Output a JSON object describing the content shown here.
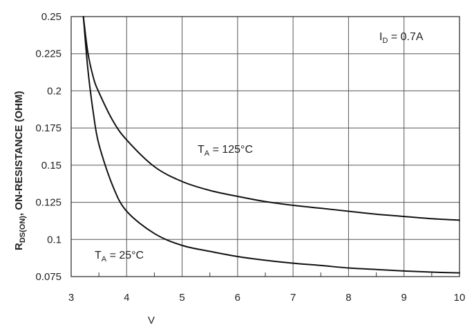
{
  "chart_data": {
    "type": "line",
    "ylabel": {
      "prefix": "R",
      "sub": "DS(ON)",
      "rest": ", ON-RESISTANCE (OHM)"
    },
    "xlabel_fragment": "V",
    "xlim": [
      3,
      10
    ],
    "ylim": [
      0.075,
      0.25
    ],
    "x_ticks": [
      "3",
      "4",
      "5",
      "6",
      "7",
      "8",
      "9",
      "10"
    ],
    "y_ticks": [
      "0.25",
      "0.225",
      "0.2",
      "0.175",
      "0.15",
      "0.125",
      "0.1",
      "0.075"
    ],
    "grid": true,
    "annotations": {
      "id": {
        "base": "I",
        "sub": "D",
        "rest": " = 0.7A"
      },
      "t125": {
        "base": "T",
        "sub": "A",
        "rest": " = 125°C"
      },
      "t25": {
        "base": "T",
        "sub": "A",
        "rest": " = 25°C"
      }
    },
    "series": [
      {
        "label": "T_A = 125°C",
        "x": [
          3.22,
          3.3,
          3.4,
          3.5,
          3.75,
          4,
          4.5,
          5,
          5.5,
          6,
          6.5,
          7,
          7.5,
          8,
          8.5,
          9,
          9.5,
          10
        ],
        "y": [
          0.25,
          0.226,
          0.209,
          0.199,
          0.18,
          0.167,
          0.149,
          0.139,
          0.133,
          0.129,
          0.1255,
          0.123,
          0.121,
          0.119,
          0.117,
          0.1155,
          0.114,
          0.113
        ]
      },
      {
        "label": "T_A = 25°C",
        "x": [
          3.22,
          3.3,
          3.4,
          3.5,
          3.75,
          4,
          4.5,
          5,
          5.5,
          6,
          6.5,
          7,
          7.5,
          8,
          8.5,
          9,
          9.5,
          10
        ],
        "y": [
          0.25,
          0.215,
          0.185,
          0.164,
          0.136,
          0.119,
          0.104,
          0.096,
          0.092,
          0.0885,
          0.086,
          0.084,
          0.0825,
          0.0808,
          0.0798,
          0.0788,
          0.078,
          0.0775
        ]
      }
    ]
  }
}
